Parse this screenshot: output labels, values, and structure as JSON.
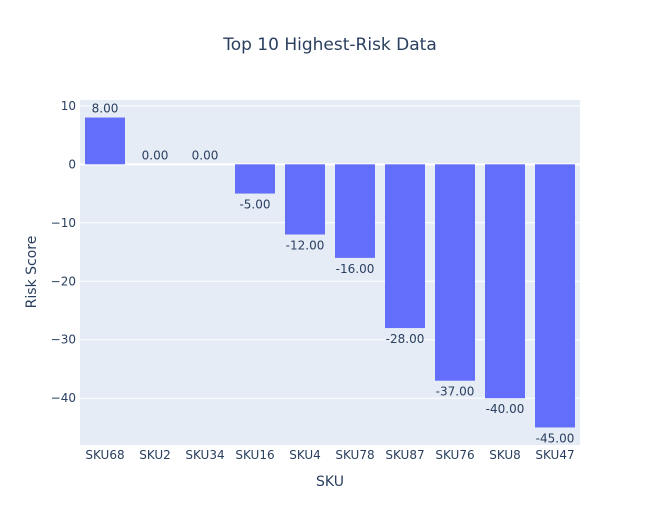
{
  "chart_data": {
    "type": "bar",
    "title": "Top 10 Highest-Risk Data",
    "xlabel": "SKU",
    "ylabel": "Risk Score",
    "categories": [
      "SKU68",
      "SKU2",
      "SKU34",
      "SKU16",
      "SKU4",
      "SKU78",
      "SKU87",
      "SKU76",
      "SKU8",
      "SKU47"
    ],
    "values": [
      8,
      0,
      0,
      -5,
      -12,
      -16,
      -28,
      -37,
      -40,
      -45
    ],
    "data_labels": [
      "8.00",
      "0.00",
      "0.00",
      "-5.00",
      "-12.00",
      "-16.00",
      "-28.00",
      "-37.00",
      "-40.00",
      "-45.00"
    ],
    "ylim": [
      -48,
      11
    ],
    "yticks": [
      10,
      0,
      -10,
      -20,
      -30,
      -40
    ],
    "ytick_labels": [
      "10",
      "0",
      "−10",
      "−20",
      "−30",
      "−40"
    ],
    "grid": true,
    "colors": {
      "bar": "#636efa",
      "plot_bg": "#e5ecf6",
      "grid": "#ffffff",
      "text": "#2a3f5f"
    }
  }
}
